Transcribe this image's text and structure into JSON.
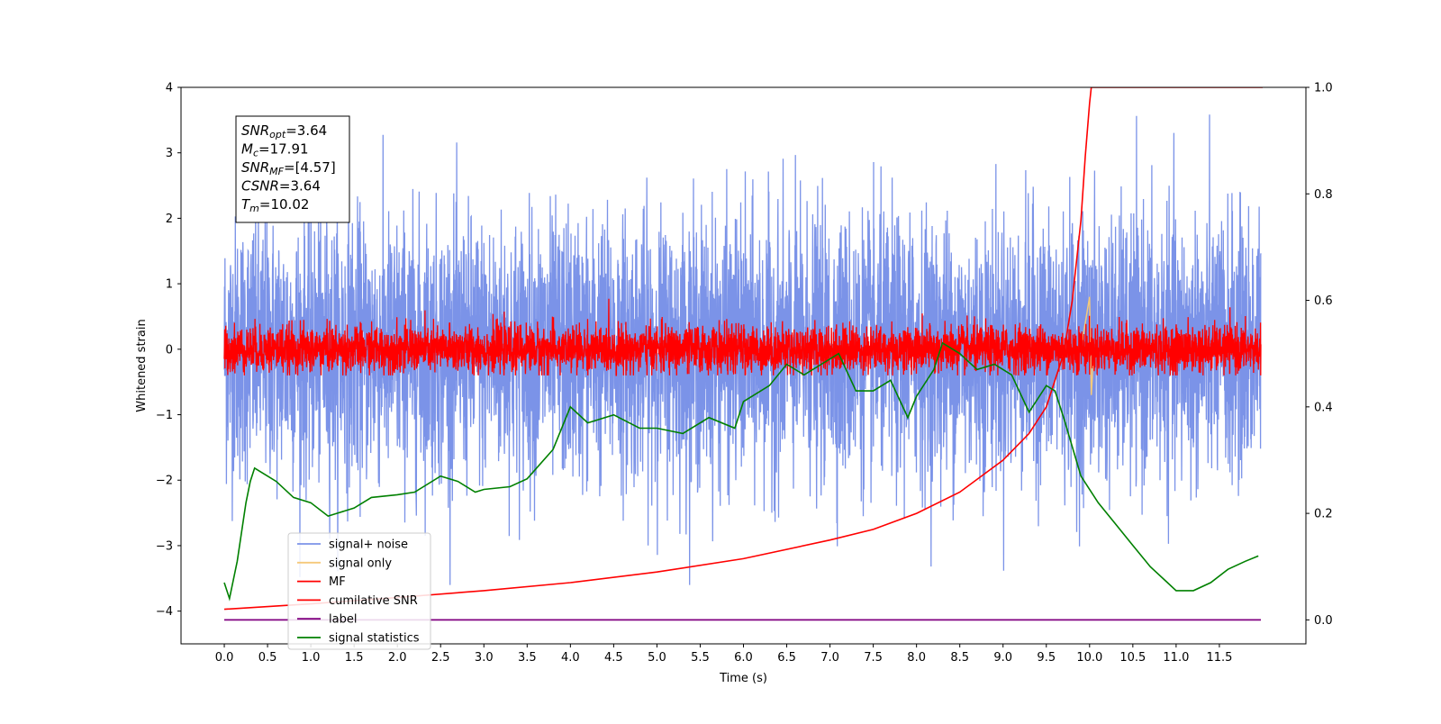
{
  "chart_data": {
    "type": "line",
    "xlabel": "Time (s)",
    "ylabel": "Whitened strain",
    "xlim": [
      -0.5,
      12.5
    ],
    "ylim": [
      -4.5,
      4.0
    ],
    "y2lim": [
      -0.045,
      1.0
    ],
    "xticks": [
      "0.0",
      "0.5",
      "1.0",
      "1.5",
      "2.0",
      "2.5",
      "3.0",
      "3.5",
      "4.0",
      "4.5",
      "5.0",
      "5.5",
      "6.0",
      "6.5",
      "7.0",
      "7.5",
      "8.0",
      "8.5",
      "9.0",
      "9.5",
      "10.0",
      "10.5",
      "11.0",
      "11.5"
    ],
    "yticks": [
      "4",
      "3",
      "2",
      "1",
      "0",
      "−1",
      "−2",
      "−3",
      "−4"
    ],
    "y2ticks": [
      "1.0",
      "0.8",
      "0.6",
      "0.4",
      "0.2",
      "0.0"
    ],
    "annotation": [
      {
        "name": "SNR",
        "sub": "opt",
        "value": "=3.64"
      },
      {
        "name": "M",
        "sub": "c",
        "value": "=17.91"
      },
      {
        "name": "SNR",
        "sub": "MF",
        "value": "=[4.57]"
      },
      {
        "name": "CSNR",
        "sub": "",
        "value": "=3.64"
      },
      {
        "name": "T",
        "sub": "m",
        "value": "=10.02"
      }
    ],
    "legend_position": "lower-left",
    "legend": [
      {
        "label": "signal+ noise",
        "color": "#7b93e8"
      },
      {
        "label": "signal only",
        "color": "#f5c97a"
      },
      {
        "label": "MF",
        "color": "#ff0000"
      },
      {
        "label": "cumilative SNR",
        "color": "#ff0000"
      },
      {
        "label": "label",
        "color": "#800080"
      },
      {
        "label": "signal statistics",
        "color": "#008000"
      }
    ],
    "series": [
      {
        "name": "signal+ noise",
        "axis": "left",
        "style": "noise band",
        "x_range": [
          0.0,
          11.98
        ],
        "typical_range": [
          -2.0,
          2.0
        ],
        "extremes": [
          -3.6,
          3.6
        ]
      },
      {
        "name": "signal only",
        "axis": "left",
        "style": "burst",
        "x": [
          9.9,
          9.95,
          10.0,
          10.02,
          10.05
        ],
        "y": [
          0.0,
          0.4,
          0.8,
          -0.7,
          0.0
        ]
      },
      {
        "name": "MF",
        "axis": "left",
        "style": "noise band",
        "x_range": [
          0.0,
          11.98
        ],
        "typical_range": [
          -0.35,
          0.4
        ],
        "extremes": [
          -0.4,
          1.0
        ]
      },
      {
        "name": "cumilative SNR",
        "axis": "right",
        "x": [
          0.0,
          1.0,
          2.0,
          3.0,
          4.0,
          5.0,
          6.0,
          7.0,
          7.5,
          8.0,
          8.5,
          9.0,
          9.3,
          9.5,
          9.7,
          9.8,
          9.9,
          9.95,
          10.0,
          10.02,
          12.0
        ],
        "y": [
          0.02,
          0.03,
          0.042,
          0.055,
          0.07,
          0.09,
          0.115,
          0.15,
          0.17,
          0.2,
          0.24,
          0.3,
          0.35,
          0.4,
          0.5,
          0.6,
          0.75,
          0.87,
          0.97,
          1.0,
          1.0
        ]
      },
      {
        "name": "label",
        "axis": "right",
        "x": [
          0.0,
          11.98
        ],
        "y": [
          0.0,
          0.0
        ]
      },
      {
        "name": "signal statistics",
        "axis": "right",
        "x": [
          0.0,
          0.06,
          0.15,
          0.25,
          0.3,
          0.35,
          0.4,
          0.5,
          0.6,
          0.8,
          1.0,
          1.2,
          1.3,
          1.5,
          1.7,
          2.0,
          2.2,
          2.5,
          2.7,
          2.9,
          3.0,
          3.3,
          3.5,
          3.8,
          4.0,
          4.2,
          4.5,
          4.8,
          5.0,
          5.3,
          5.6,
          5.9,
          6.0,
          6.3,
          6.5,
          6.7,
          6.9,
          7.1,
          7.3,
          7.5,
          7.7,
          7.9,
          8.0,
          8.2,
          8.3,
          8.5,
          8.7,
          8.9,
          9.1,
          9.3,
          9.5,
          9.6,
          9.7,
          9.9,
          10.1,
          10.3,
          10.5,
          10.7,
          10.9,
          11.0,
          11.2,
          11.4,
          11.6,
          11.8,
          11.95
        ],
        "y": [
          0.07,
          0.04,
          0.11,
          0.22,
          0.26,
          0.285,
          0.28,
          0.27,
          0.26,
          0.23,
          0.22,
          0.195,
          0.2,
          0.21,
          0.23,
          0.235,
          0.24,
          0.27,
          0.26,
          0.24,
          0.245,
          0.25,
          0.265,
          0.32,
          0.4,
          0.37,
          0.385,
          0.36,
          0.36,
          0.35,
          0.38,
          0.36,
          0.41,
          0.44,
          0.48,
          0.46,
          0.48,
          0.5,
          0.43,
          0.43,
          0.45,
          0.38,
          0.42,
          0.47,
          0.52,
          0.5,
          0.47,
          0.48,
          0.46,
          0.39,
          0.44,
          0.43,
          0.38,
          0.27,
          0.22,
          0.18,
          0.14,
          0.1,
          0.07,
          0.055,
          0.055,
          0.07,
          0.095,
          0.11,
          0.12
        ]
      }
    ]
  }
}
